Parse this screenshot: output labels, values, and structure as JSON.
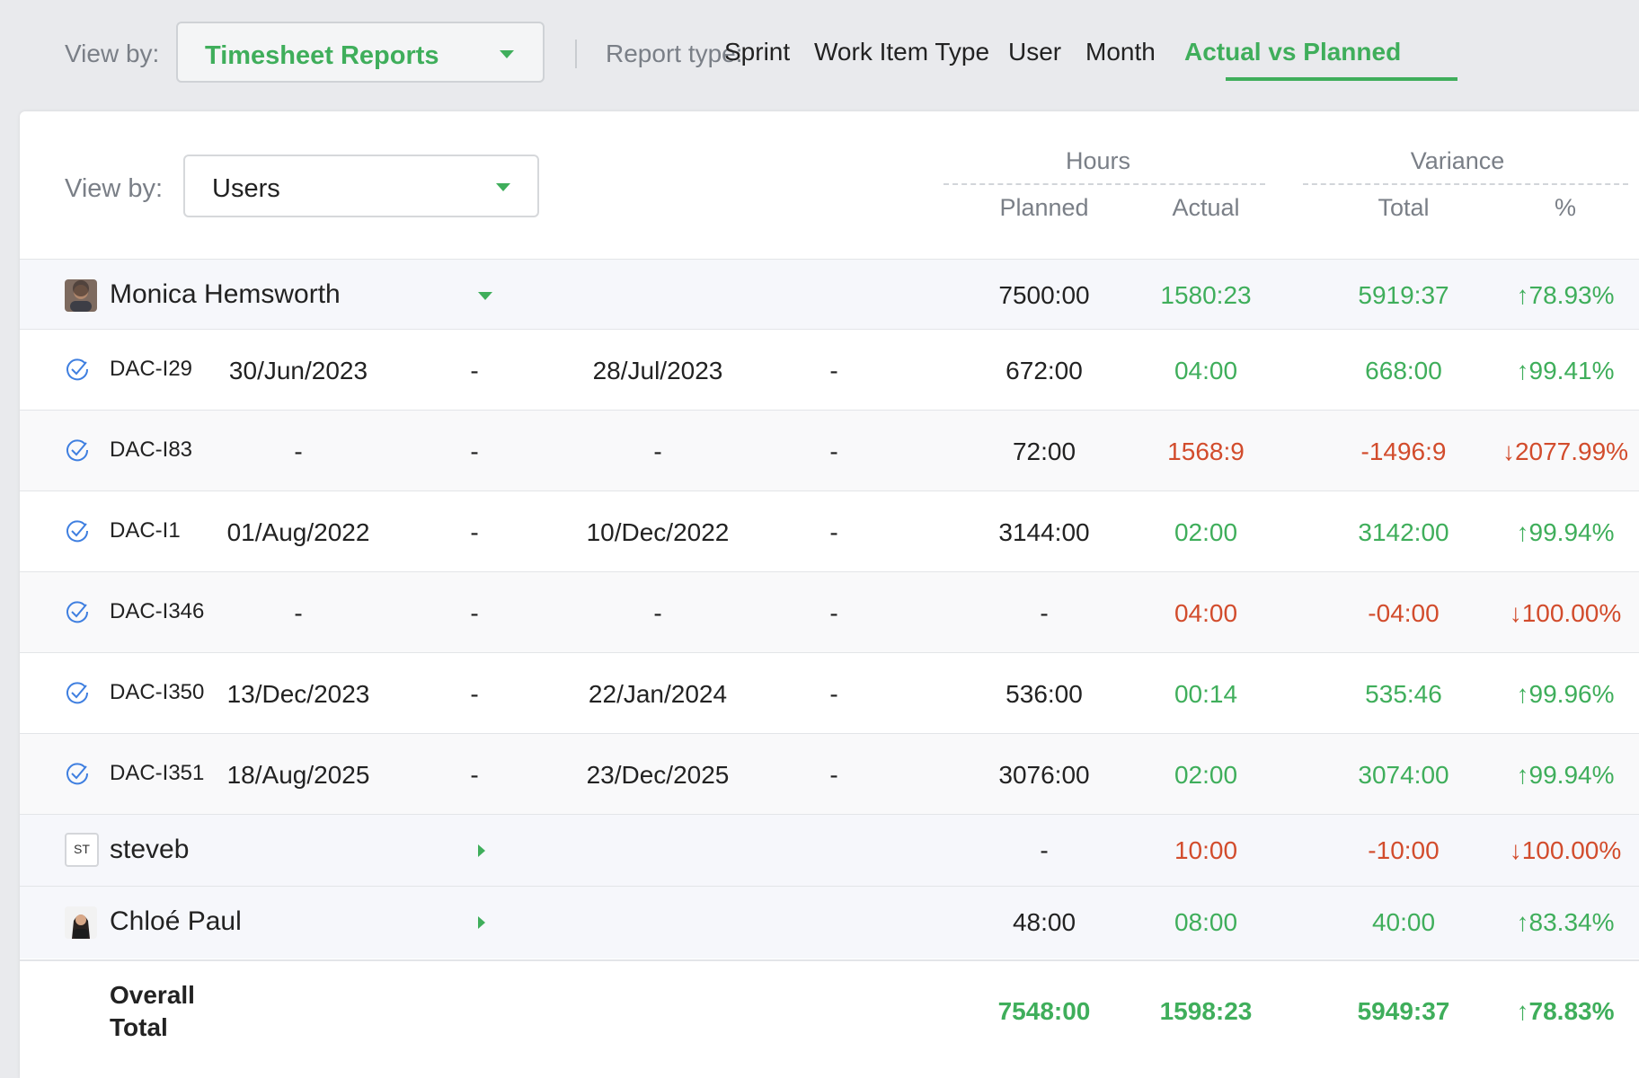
{
  "topbar": {
    "view_by_label": "View by:",
    "view_by_value": "Timesheet Reports",
    "report_type_label": "Report type:",
    "report_tabs": [
      {
        "label": "Sprint"
      },
      {
        "label": "Work Item Type"
      },
      {
        "label": "User"
      },
      {
        "label": "Month"
      },
      {
        "label": "Actual vs Planned",
        "active": true
      }
    ]
  },
  "panel": {
    "view_by_label": "View by:",
    "view_by_value": "Users",
    "groups": {
      "hours": "Hours",
      "variance": "Variance"
    },
    "columns": {
      "planned": "Planned",
      "actual": "Actual",
      "total": "Total",
      "pct": "%"
    }
  },
  "users": [
    {
      "name": "Monica Hemsworth",
      "expanded": true,
      "planned": "7500:00",
      "actual": "1580:23",
      "var_total": "5919:37",
      "var_pct": "↑78.93%",
      "items": [
        {
          "id": "DAC-I29",
          "start": "30/Jun/2023",
          "s_dash": "-",
          "end": "28/Jul/2023",
          "e_dash": "-",
          "planned": "672:00",
          "actual": "04:00",
          "var_total": "668:00",
          "var_pct": "↑99.41%"
        },
        {
          "id": "DAC-I83",
          "start": "-",
          "s_dash": "-",
          "end": "-",
          "e_dash": "-",
          "planned": "72:00",
          "actual": "1568:9",
          "var_total": "-1496:9",
          "var_pct": "↓2077.99%"
        },
        {
          "id": "DAC-I1",
          "start": "01/Aug/2022",
          "s_dash": "-",
          "end": "10/Dec/2022",
          "e_dash": "-",
          "planned": "3144:00",
          "actual": "02:00",
          "var_total": "3142:00",
          "var_pct": "↑99.94%"
        },
        {
          "id": "DAC-I346",
          "start": "-",
          "s_dash": "-",
          "end": "-",
          "e_dash": "-",
          "planned": "-",
          "actual": "04:00",
          "var_total": "-04:00",
          "var_pct": "↓100.00%"
        },
        {
          "id": "DAC-I350",
          "start": "13/Dec/2023",
          "s_dash": "-",
          "end": "22/Jan/2024",
          "e_dash": "-",
          "planned": "536:00",
          "actual": "00:14",
          "var_total": "535:46",
          "var_pct": "↑99.96%"
        },
        {
          "id": "DAC-I351",
          "start": "18/Aug/2025",
          "s_dash": "-",
          "end": "23/Dec/2025",
          "e_dash": "-",
          "planned": "3076:00",
          "actual": "02:00",
          "var_total": "3074:00",
          "var_pct": "↑99.94%"
        }
      ]
    },
    {
      "name": "steveb",
      "initials": "ST",
      "expanded": false,
      "planned": "-",
      "actual": "10:00",
      "var_total": "-10:00",
      "var_pct": "↓100.00%"
    },
    {
      "name": "Chloé Paul",
      "expanded": false,
      "planned": "48:00",
      "actual": "08:00",
      "var_total": "40:00",
      "var_pct": "↑83.34%"
    }
  ],
  "overall": {
    "label_line1": "Overall",
    "label_line2": "Total",
    "planned": "7548:00",
    "actual": "1598:23",
    "var_total": "5949:37",
    "var_pct": "↑78.83%"
  },
  "colors": {
    "accent": "#3fae5b",
    "negative": "#d24c2c"
  }
}
